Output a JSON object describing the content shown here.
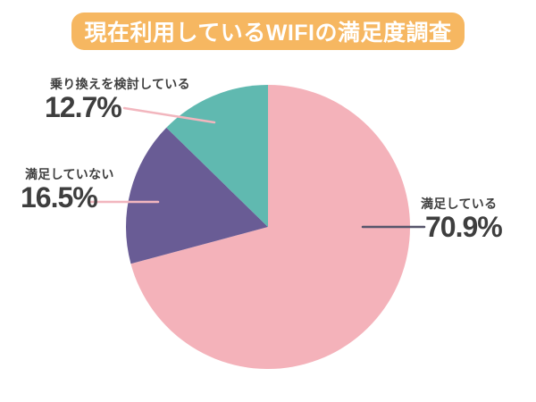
{
  "chart_data": {
    "type": "pie",
    "title": "現在利用しているWIFIの満足度調査",
    "unit": "%",
    "direction": "clockwise",
    "start_angle_deg": 0,
    "legend_position": "callout-labels",
    "slices": [
      {
        "label": "満足している",
        "value": 70.9,
        "display": "70.9%",
        "color": "#F4B2BA"
      },
      {
        "label": "満足していない",
        "value": 16.5,
        "display": "16.5%",
        "color": "#695C95"
      },
      {
        "label": "乗り換えを検討している",
        "value": 12.7,
        "display": "12.7%",
        "color": "#60B9B0"
      }
    ]
  },
  "colors": {
    "banner_bg": "#F6B761",
    "banner_text": "#FFFFFF",
    "label_text": "#3E3E3E",
    "leader_light": "#F2B6BE",
    "leader_dark": "#56556B",
    "background": "#FFFFFF"
  }
}
